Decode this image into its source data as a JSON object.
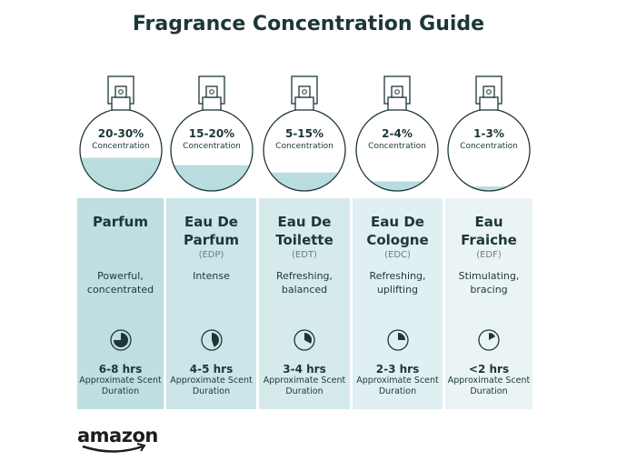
{
  "title": "Fragrance Concentration Guide",
  "fill_color": "#b9dcdf",
  "columns": [
    {
      "percent": "20-30%",
      "conc_label": "Concentration",
      "fill_level": 0.45,
      "name": "Parfum",
      "abbr": "",
      "desc": "Powerful, concentrated",
      "duration": "6-8 hrs",
      "duration_label": "Approximate Scent Duration",
      "clock_fraction": 0.75,
      "bg": "#bfdfe2"
    },
    {
      "percent": "15-20%",
      "conc_label": "Concentration",
      "fill_level": 0.35,
      "name": "Eau De Parfum",
      "abbr": "(EDP)",
      "desc": "Intense",
      "duration": "4-5 hrs",
      "duration_label": "Approximate Scent Duration",
      "clock_fraction": 0.45,
      "bg": "#cbe5e8"
    },
    {
      "percent": "5-15%",
      "conc_label": "Concentration",
      "fill_level": 0.25,
      "name": "Eau De Toilette",
      "abbr": "(EDT)",
      "desc": "Refreshing, balanced",
      "duration": "3-4 hrs",
      "duration_label": "Approximate Scent Duration",
      "clock_fraction": 0.33,
      "bg": "#d6eaec"
    },
    {
      "percent": "2-4%",
      "conc_label": "Concentration",
      "fill_level": 0.13,
      "name": "Eau De Cologne",
      "abbr": "(EDC)",
      "desc": "Refreshing, uplifting",
      "duration": "2-3 hrs",
      "duration_label": "Approximate Scent Duration",
      "clock_fraction": 0.25,
      "bg": "#e0eff1"
    },
    {
      "percent": "1-3%",
      "conc_label": "Concentration",
      "fill_level": 0.06,
      "name": "Eau Fraiche",
      "abbr": "(EDF)",
      "desc": "Stimulating, bracing",
      "duration": "<2 hrs",
      "duration_label": "Approximate Scent Duration",
      "clock_fraction": 0.17,
      "bg": "#eaf4f5"
    }
  ],
  "logo": "amazon"
}
